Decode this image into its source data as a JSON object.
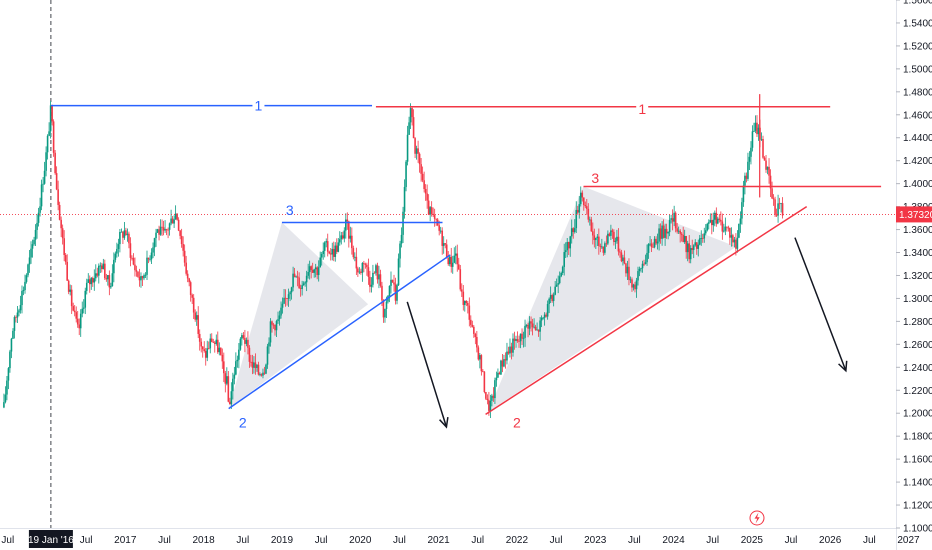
{
  "chart_data": {
    "type": "line",
    "xlim": [
      2015.4,
      2027.3
    ],
    "ylim": [
      1.1,
      1.56
    ],
    "y_ticks": [
      "1.10000",
      "1.12000",
      "1.14000",
      "1.16000",
      "1.18000",
      "1.20000",
      "1.22000",
      "1.24000",
      "1.26000",
      "1.28000",
      "1.30000",
      "1.32000",
      "1.34000",
      "1.36000",
      "1.38000",
      "1.40000",
      "1.42000",
      "1.44000",
      "1.46000",
      "1.48000",
      "1.50000",
      "1.52000",
      "1.54000",
      "1.56000"
    ],
    "x_ticks": [
      {
        "label": "Jul",
        "x": 2015.5
      },
      {
        "label": "19 Jan '16",
        "x": 2016.05
      },
      {
        "label": "Jul",
        "x": 2016.5
      },
      {
        "label": "2017",
        "x": 2017.0
      },
      {
        "label": "Jul",
        "x": 2017.5
      },
      {
        "label": "2018",
        "x": 2018.0
      },
      {
        "label": "Jul",
        "x": 2018.5
      },
      {
        "label": "2019",
        "x": 2019.0
      },
      {
        "label": "Jul",
        "x": 2019.5
      },
      {
        "label": "2020",
        "x": 2020.0
      },
      {
        "label": "Jul",
        "x": 2020.5
      },
      {
        "label": "2021",
        "x": 2021.0
      },
      {
        "label": "Jul",
        "x": 2021.5
      },
      {
        "label": "2022",
        "x": 2022.0
      },
      {
        "label": "Jul",
        "x": 2022.5
      },
      {
        "label": "2023",
        "x": 2023.0
      },
      {
        "label": "Jul",
        "x": 2023.5
      },
      {
        "label": "2024",
        "x": 2024.0
      },
      {
        "label": "Jul",
        "x": 2024.5
      },
      {
        "label": "2025",
        "x": 2025.0
      },
      {
        "label": "Jul",
        "x": 2025.5
      },
      {
        "label": "2026",
        "x": 2026.0
      },
      {
        "label": "Jul",
        "x": 2026.5
      },
      {
        "label": "2027",
        "x": 2027.0
      }
    ],
    "crosshair": {
      "x": 2016.05,
      "label": "19 Jan '16"
    },
    "price_badge": {
      "value": 1.3732,
      "label": "1.37320",
      "color": "#f23645"
    },
    "colors": {
      "up": "#089981",
      "down": "#f23645",
      "blue": "#2962ff",
      "red": "#f23645",
      "arrow": "#131722",
      "triangle": "#d1d4dc"
    },
    "series": [
      {
        "values": [
          [
            2015.45,
            1.205
          ],
          [
            2015.55,
            1.27
          ],
          [
            2015.7,
            1.31
          ],
          [
            2015.8,
            1.34
          ],
          [
            2015.9,
            1.38
          ],
          [
            2015.98,
            1.42
          ],
          [
            2016.05,
            1.465
          ],
          [
            2016.12,
            1.4
          ],
          [
            2016.2,
            1.35
          ],
          [
            2016.3,
            1.3
          ],
          [
            2016.4,
            1.27
          ],
          [
            2016.5,
            1.31
          ],
          [
            2016.6,
            1.32
          ],
          [
            2016.7,
            1.33
          ],
          [
            2016.8,
            1.31
          ],
          [
            2016.9,
            1.35
          ],
          [
            2017.0,
            1.36
          ],
          [
            2017.1,
            1.33
          ],
          [
            2017.2,
            1.315
          ],
          [
            2017.3,
            1.335
          ],
          [
            2017.4,
            1.36
          ],
          [
            2017.5,
            1.355
          ],
          [
            2017.6,
            1.37
          ],
          [
            2017.65,
            1.375
          ],
          [
            2017.72,
            1.35
          ],
          [
            2017.8,
            1.315
          ],
          [
            2017.9,
            1.285
          ],
          [
            2017.97,
            1.255
          ],
          [
            2018.02,
            1.25
          ],
          [
            2018.1,
            1.265
          ],
          [
            2018.2,
            1.255
          ],
          [
            2018.25,
            1.235
          ],
          [
            2018.3,
            1.226
          ],
          [
            2018.32,
            1.205
          ],
          [
            2018.4,
            1.24
          ],
          [
            2018.5,
            1.27
          ],
          [
            2018.6,
            1.245
          ],
          [
            2018.7,
            1.235
          ],
          [
            2018.78,
            1.24
          ],
          [
            2018.85,
            1.275
          ],
          [
            2018.95,
            1.28
          ],
          [
            2019.05,
            1.3
          ],
          [
            2019.15,
            1.32
          ],
          [
            2019.25,
            1.31
          ],
          [
            2019.35,
            1.33
          ],
          [
            2019.45,
            1.325
          ],
          [
            2019.55,
            1.345
          ],
          [
            2019.65,
            1.34
          ],
          [
            2019.75,
            1.35
          ],
          [
            2019.82,
            1.365
          ],
          [
            2019.9,
            1.345
          ],
          [
            2019.98,
            1.32
          ],
          [
            2020.05,
            1.335
          ],
          [
            2020.12,
            1.315
          ],
          [
            2020.2,
            1.325
          ],
          [
            2020.27,
            1.31
          ],
          [
            2020.3,
            1.28
          ],
          [
            2020.35,
            1.3
          ],
          [
            2020.4,
            1.32
          ],
          [
            2020.45,
            1.3
          ],
          [
            2020.5,
            1.34
          ],
          [
            2020.55,
            1.375
          ],
          [
            2020.6,
            1.435
          ],
          [
            2020.65,
            1.465
          ],
          [
            2020.7,
            1.43
          ],
          [
            2020.78,
            1.41
          ],
          [
            2020.85,
            1.38
          ],
          [
            2020.92,
            1.37
          ],
          [
            2021.0,
            1.36
          ],
          [
            2021.08,
            1.345
          ],
          [
            2021.15,
            1.33
          ],
          [
            2021.22,
            1.34
          ],
          [
            2021.3,
            1.3
          ],
          [
            2021.38,
            1.29
          ],
          [
            2021.45,
            1.265
          ],
          [
            2021.52,
            1.25
          ],
          [
            2021.58,
            1.225
          ],
          [
            2021.63,
            1.205
          ],
          [
            2021.68,
            1.21
          ],
          [
            2021.75,
            1.235
          ],
          [
            2021.85,
            1.25
          ],
          [
            2021.95,
            1.26
          ],
          [
            2022.05,
            1.265
          ],
          [
            2022.15,
            1.28
          ],
          [
            2022.25,
            1.27
          ],
          [
            2022.35,
            1.285
          ],
          [
            2022.45,
            1.3
          ],
          [
            2022.55,
            1.325
          ],
          [
            2022.65,
            1.345
          ],
          [
            2022.75,
            1.37
          ],
          [
            2022.82,
            1.395
          ],
          [
            2022.9,
            1.37
          ],
          [
            2023.0,
            1.35
          ],
          [
            2023.1,
            1.345
          ],
          [
            2023.2,
            1.36
          ],
          [
            2023.3,
            1.345
          ],
          [
            2023.4,
            1.325
          ],
          [
            2023.5,
            1.31
          ],
          [
            2023.6,
            1.33
          ],
          [
            2023.7,
            1.345
          ],
          [
            2023.8,
            1.355
          ],
          [
            2023.9,
            1.36
          ],
          [
            2024.0,
            1.37
          ],
          [
            2024.1,
            1.355
          ],
          [
            2024.2,
            1.34
          ],
          [
            2024.3,
            1.345
          ],
          [
            2024.4,
            1.355
          ],
          [
            2024.5,
            1.37
          ],
          [
            2024.6,
            1.365
          ],
          [
            2024.7,
            1.36
          ],
          [
            2024.8,
            1.345
          ],
          [
            2024.88,
            1.39
          ],
          [
            2024.95,
            1.415
          ],
          [
            2025.0,
            1.44
          ],
          [
            2025.05,
            1.45
          ],
          [
            2025.1,
            1.445
          ],
          [
            2025.15,
            1.425
          ],
          [
            2025.2,
            1.41
          ],
          [
            2025.25,
            1.39
          ],
          [
            2025.3,
            1.375
          ],
          [
            2025.35,
            1.385
          ],
          [
            2025.4,
            1.3732
          ]
        ]
      }
    ],
    "annotations": {
      "lines": [
        {
          "color": "blue",
          "x1": 2016.05,
          "y1": 1.468,
          "x2": 2020.15,
          "y2": 1.468
        },
        {
          "color": "blue",
          "x1": 2018.32,
          "y1": 1.204,
          "x2": 2021.15,
          "y2": 1.338
        },
        {
          "color": "blue",
          "x1": 2019.0,
          "y1": 1.3662,
          "x2": 2021.05,
          "y2": 1.3662
        },
        {
          "color": "red",
          "x1": 2020.2,
          "y1": 1.467,
          "x2": 2026.0,
          "y2": 1.467
        },
        {
          "color": "red",
          "x1": 2022.85,
          "y1": 1.3975,
          "x2": 2026.65,
          "y2": 1.3975
        },
        {
          "color": "red",
          "x1": 2021.6,
          "y1": 1.199,
          "x2": 2025.7,
          "y2": 1.38
        }
      ],
      "triangles": [
        [
          [
            2018.32,
            1.204
          ],
          [
            2019.0,
            1.3662
          ],
          [
            2020.1,
            1.295
          ]
        ],
        [
          [
            2021.63,
            1.201
          ],
          [
            2022.85,
            1.3975
          ],
          [
            2024.8,
            1.345
          ]
        ]
      ],
      "arrows": [
        {
          "x1": 2020.6,
          "y1": 1.297,
          "x2": 2021.1,
          "y2": 1.188
        },
        {
          "x1": 2025.55,
          "y1": 1.353,
          "x2": 2026.2,
          "y2": 1.237
        }
      ],
      "labels": [
        {
          "text": "1",
          "x": 2018.7,
          "y": 1.468,
          "color": "blue"
        },
        {
          "text": "2",
          "x": 2018.5,
          "y": 1.192,
          "color": "blue"
        },
        {
          "text": "3",
          "x": 2019.1,
          "y": 1.377,
          "color": "blue"
        },
        {
          "text": "1",
          "x": 2023.6,
          "y": 1.465,
          "color": "red"
        },
        {
          "text": "2",
          "x": 2022.0,
          "y": 1.192,
          "color": "red"
        },
        {
          "text": "3",
          "x": 2023.0,
          "y": 1.405,
          "color": "red"
        }
      ],
      "tall_bar": {
        "x": 2025.1,
        "low": 1.388,
        "high": 1.478
      }
    }
  }
}
